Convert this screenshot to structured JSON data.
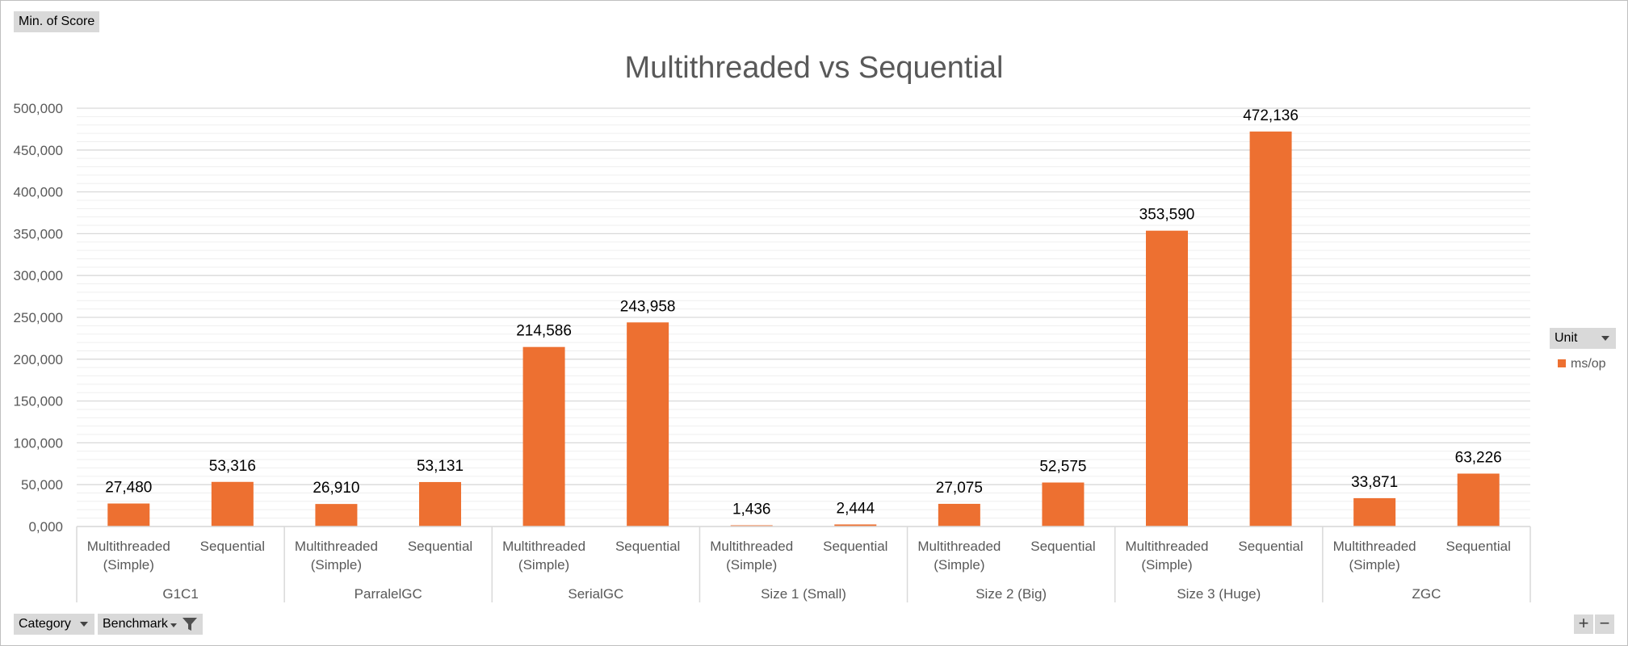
{
  "pivot": {
    "value_field": "Min. of Score",
    "legend_field": "Unit",
    "axis_fields": [
      "Category",
      "Benchmark"
    ]
  },
  "zoom": {
    "plus": "+",
    "minus": "−"
  },
  "icons": {
    "dropdown": "chevron-down-icon",
    "filter": "filter-icon"
  },
  "chart_data": {
    "type": "bar",
    "title": "Multithreaded vs Sequential",
    "xlabel": "",
    "ylabel": "",
    "ylim": [
      0,
      500000
    ],
    "y_major_step": 50000,
    "grid": true,
    "legend": {
      "placement": "right",
      "entries": [
        "ms/op"
      ]
    },
    "bar_color": "#ed7031",
    "groups": [
      {
        "name": "G1C1",
        "categories": [
          "Multithreaded (Simple)",
          "Sequential"
        ],
        "values": [
          27480,
          53316
        ]
      },
      {
        "name": "ParralelGC",
        "categories": [
          "Multithreaded (Simple)",
          "Sequential"
        ],
        "values": [
          26910,
          53131
        ]
      },
      {
        "name": "SerialGC",
        "categories": [
          "Multithreaded (Simple)",
          "Sequential"
        ],
        "values": [
          214586,
          243958
        ]
      },
      {
        "name": "Size 1 (Small)",
        "categories": [
          "Multithreaded (Simple)",
          "Sequential"
        ],
        "values": [
          1436,
          2444
        ]
      },
      {
        "name": "Size 2 (Big)",
        "categories": [
          "Multithreaded (Simple)",
          "Sequential"
        ],
        "values": [
          27075,
          52575
        ]
      },
      {
        "name": "Size 3 (Huge)",
        "categories": [
          "Multithreaded (Simple)",
          "Sequential"
        ],
        "values": [
          353590,
          472136
        ]
      },
      {
        "name": "ZGC",
        "categories": [
          "Multithreaded (Simple)",
          "Sequential"
        ],
        "values": [
          33871,
          63226
        ]
      }
    ],
    "series": [
      {
        "name": "ms/op"
      }
    ]
  }
}
